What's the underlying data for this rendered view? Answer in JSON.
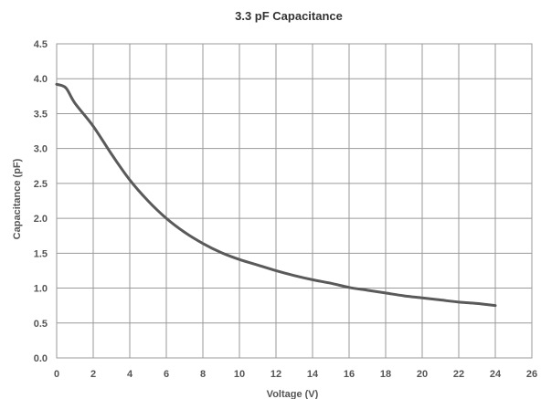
{
  "chart_data": {
    "type": "line",
    "title": "3.3 pF Capacitance",
    "xlabel": "Voltage (V)",
    "ylabel": "Capacitance (pF)",
    "xlim": [
      0,
      26
    ],
    "ylim": [
      0,
      4.5
    ],
    "x_ticks": [
      "0",
      "2",
      "4",
      "6",
      "8",
      "10",
      "12",
      "14",
      "16",
      "18",
      "20",
      "22",
      "24",
      "26"
    ],
    "y_ticks": [
      "0.0",
      "0.5",
      "1.0",
      "1.5",
      "2.0",
      "2.5",
      "3.0",
      "3.5",
      "4.0",
      "4.5"
    ],
    "grid": true,
    "legend": "none",
    "colors": {
      "line": "#5a5a5a",
      "grid": "#9a9a9a",
      "text": "#555555"
    },
    "series": [
      {
        "x": [
          0,
          0.5,
          1,
          2,
          3,
          4,
          5,
          6,
          7,
          8,
          9,
          10,
          11,
          12,
          13,
          14,
          15,
          16,
          17,
          18,
          19,
          20,
          21,
          22,
          23,
          24
        ],
        "y": [
          3.92,
          3.87,
          3.65,
          3.32,
          2.92,
          2.55,
          2.25,
          2.0,
          1.8,
          1.64,
          1.51,
          1.41,
          1.33,
          1.25,
          1.18,
          1.12,
          1.07,
          1.01,
          0.97,
          0.93,
          0.89,
          0.86,
          0.83,
          0.8,
          0.78,
          0.75
        ]
      }
    ]
  }
}
